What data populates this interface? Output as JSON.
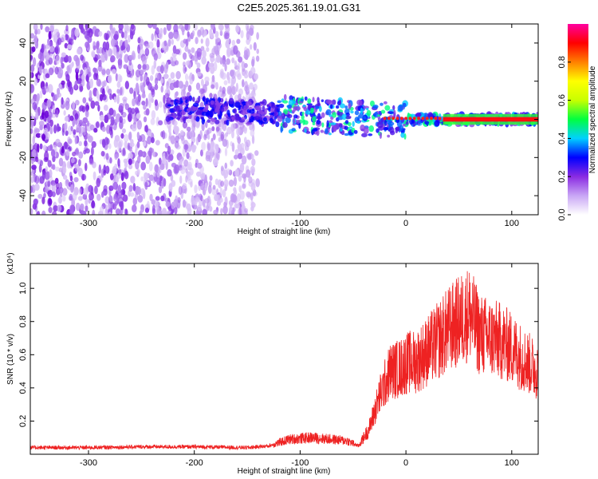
{
  "title": "C2E5.2025.361.19.01.G31",
  "chart_data": [
    {
      "type": "heatmap",
      "xlabel": "Height of straight line (km)",
      "ylabel": "Frequency (Hz)",
      "xlim": [
        -355,
        125
      ],
      "ylim": [
        -50,
        50
      ],
      "x_ticks": [
        -300,
        -200,
        -100,
        0,
        100
      ],
      "x_tick_labels": [
        "-300",
        "-200",
        "-100",
        "0",
        "100"
      ],
      "y_ticks": [
        -40,
        -20,
        0,
        20,
        40
      ],
      "y_tick_labels": [
        "-40",
        "-20",
        "0",
        "20",
        "40"
      ],
      "colorbar": {
        "label": "Normalized spectral amplitude",
        "range": [
          0,
          1
        ],
        "ticks": [
          0.0,
          0.2,
          0.4,
          0.6,
          0.8
        ],
        "tick_labels": [
          "0.0",
          "0.2",
          "0.4",
          "0.6",
          "0.8"
        ],
        "colors": [
          "#ffffff",
          "#c9a6f5",
          "#8a2be2",
          "#0000ff",
          "#00d0ff",
          "#00ff40",
          "#c8ff00",
          "#ffff00",
          "#ff8000",
          "#ff0000",
          "#ff00a0"
        ]
      },
      "features": {
        "noise_region_x": [
          -355,
          -140
        ],
        "noise_frequency_range": [
          -50,
          50
        ],
        "signal_band": {
          "x": [
            -225,
            125
          ],
          "center_frequency": 0
        },
        "strong_carrier_from_x": 35
      }
    },
    {
      "type": "line",
      "xlabel": "Height of straight line (km)",
      "ylabel": "SNR (10 * v/v)",
      "y_scale_note": "(x10⁴)",
      "xlim": [
        -355,
        125
      ],
      "ylim": [
        0,
        1.15
      ],
      "x_ticks": [
        -300,
        -200,
        -100,
        0,
        100
      ],
      "x_tick_labels": [
        "-300",
        "-200",
        "-100",
        "0",
        "100"
      ],
      "y_ticks": [
        0.2,
        0.4,
        0.6,
        0.8,
        1.0
      ],
      "y_tick_labels": [
        "0.2",
        "0.4",
        "0.6",
        "0.8",
        "1.0"
      ],
      "color": "#ee2222",
      "series": [
        {
          "name": "SNR",
          "x": [
            -355,
            -300,
            -250,
            -200,
            -150,
            -130,
            -110,
            -90,
            -70,
            -55,
            -45,
            -35,
            -25,
            -15,
            -5,
            0,
            10,
            20,
            30,
            40,
            50,
            60,
            70,
            80,
            90,
            100,
            110,
            125
          ],
          "y": [
            0.04,
            0.04,
            0.045,
            0.045,
            0.04,
            0.05,
            0.09,
            0.1,
            0.09,
            0.08,
            0.05,
            0.15,
            0.35,
            0.5,
            0.52,
            0.55,
            0.56,
            0.62,
            0.68,
            0.75,
            0.8,
            0.85,
            0.72,
            0.7,
            0.68,
            0.64,
            0.58,
            0.5
          ]
        }
      ]
    }
  ]
}
